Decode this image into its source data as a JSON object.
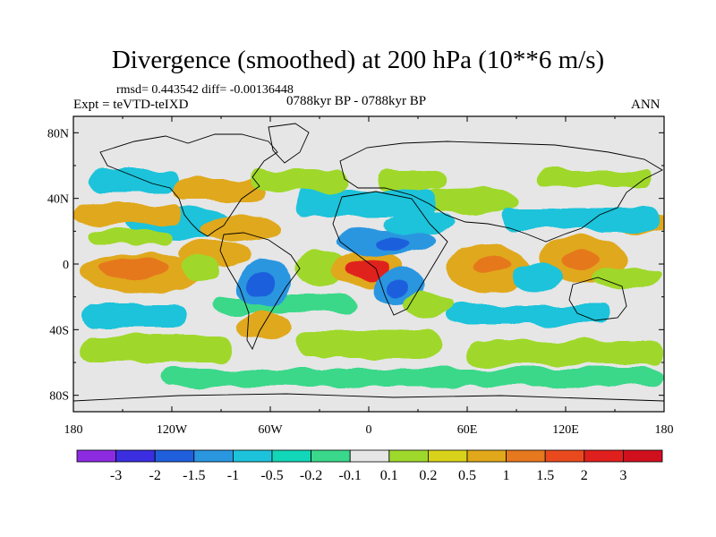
{
  "figure": {
    "title": "Divergence (smoothed) at 200 hPa (10**6 m/s)",
    "stats_text": "rmsd= 0.443542 diff= -0.00136448",
    "experiment_text": "Expt = teVTD-teIXD",
    "period_text": "0788kyr BP - 0788kyr BP",
    "season_text": "ANN"
  },
  "map": {
    "projection": "cylindrical equidistant",
    "lon_range": [
      -180,
      180
    ],
    "lat_range": [
      -90,
      90
    ],
    "x_tick_labels": [
      "180",
      "120W",
      "60W",
      "0",
      "60E",
      "120E",
      "180"
    ],
    "y_tick_labels": [
      "80N",
      "40N",
      "0",
      "40S",
      "80S"
    ],
    "background_color": "#e6e6e6",
    "coastline_color": "#000000"
  },
  "colorbar": {
    "labels": [
      "-3",
      "-2",
      "-1.5",
      "-1",
      "-0.5",
      "-0.2",
      "-0.1",
      "0.1",
      "0.2",
      "0.5",
      "1",
      "1.5",
      "2",
      "3"
    ],
    "colors": [
      "#8c2be2",
      "#3a2ee0",
      "#1f5fdc",
      "#2a96e0",
      "#1cc3da",
      "#12d6b8",
      "#3ad88a",
      "#e6e6e6",
      "#9fd82c",
      "#d8d21a",
      "#e0a81a",
      "#e6781e",
      "#e84a1e",
      "#e0201e",
      "#d0101e"
    ]
  },
  "field_colors": {
    "pos_weak": "#9fd82c",
    "pos_mid": "#e0a81a",
    "pos_strong": "#e6781e",
    "pos_max": "#e0201e",
    "neg_weak": "#3ad88a",
    "neg_mid": "#1cc3da",
    "neg_strong": "#2a96e0",
    "neg_max": "#1f5fdc"
  }
}
